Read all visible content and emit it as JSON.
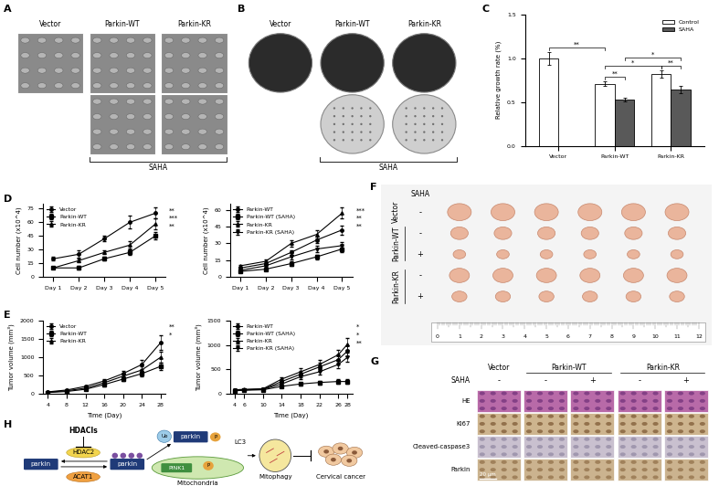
{
  "chart_data": [
    {
      "panel": "C",
      "type": "bar",
      "ylabel": "Relative growth rate (%)",
      "categories": [
        "Vector",
        "Parkin-WT",
        "Parkin-KR"
      ],
      "series": [
        {
          "name": "Control",
          "color": "#ffffff",
          "values": [
            1.0,
            0.71,
            0.82
          ],
          "errors": [
            0.07,
            0.03,
            0.04
          ]
        },
        {
          "name": "SAHA",
          "color": "#595959",
          "values": [
            null,
            0.53,
            0.64
          ],
          "errors": [
            null,
            0.02,
            0.04
          ]
        }
      ],
      "ylim": [
        0,
        1.5
      ],
      "yticks": [
        {
          "value": 0,
          "label": "0.0"
        },
        {
          "value": 0.5,
          "label": "0.5"
        },
        {
          "value": 1.0,
          "label": "1.0"
        },
        {
          "value": 1.5,
          "label": "1.5"
        }
      ],
      "legend": "upper right",
      "comparisons": [
        {
          "between": [
            [
              "Parkin-WT",
              "Control"
            ],
            [
              "Parkin-WT",
              "SAHA"
            ]
          ],
          "text": "**"
        },
        {
          "between": [
            [
              "Parkin-KR",
              "Control"
            ],
            [
              "Parkin-KR",
              "SAHA"
            ]
          ],
          "text": "**"
        },
        {
          "between": [
            [
              "Vector",
              "Control"
            ],
            [
              "Parkin-WT",
              "Control"
            ]
          ],
          "text": "**"
        },
        {
          "between": [
            [
              "Parkin-WT",
              "Control"
            ],
            [
              "Parkin-KR",
              "Control"
            ]
          ],
          "text": "*"
        },
        {
          "between": [
            [
              "Parkin-WT",
              "SAHA"
            ],
            [
              "Parkin-KR",
              "SAHA"
            ]
          ],
          "text": "*"
        }
      ]
    },
    {
      "panel": "D",
      "type": "line",
      "ylabel": "Cell number (x10^4)",
      "categories": [
        "Day 1",
        "Day 2",
        "Day 3",
        "Day 4",
        "Day 5"
      ],
      "series": [
        {
          "name": "Vector",
          "color": "#000000",
          "marker": "circle",
          "values": [
            20,
            25,
            42,
            60,
            70
          ],
          "errors": [
            2,
            4,
            3,
            7,
            6
          ]
        },
        {
          "name": "Parkin-WT",
          "color": "#000000",
          "marker": "square",
          "values": [
            10,
            10,
            20,
            27,
            45
          ],
          "errors": [
            1,
            2,
            2,
            3,
            4
          ]
        },
        {
          "name": "Parkin-KR",
          "color": "#000000",
          "marker": "triangle",
          "values": [
            10,
            18,
            27,
            35,
            58
          ],
          "errors": [
            1,
            2,
            2,
            4,
            6
          ]
        }
      ],
      "ylim": [
        0,
        80
      ],
      "yticks": [
        0,
        15,
        30,
        45,
        60,
        75
      ],
      "legend": "upper left",
      "significance": [
        "**",
        "***",
        "**"
      ]
    },
    {
      "type": "line",
      "ylabel": "Cell number (x10^4)",
      "categories": [
        "Day 1",
        "Day 2",
        "Day 3",
        "Day 4",
        "Day 5"
      ],
      "series": [
        {
          "name": "Parkin-WT",
          "color": "#000000",
          "marker": "circle",
          "values": [
            8,
            12,
            22,
            33,
            42
          ],
          "errors": [
            1,
            2,
            2,
            3,
            4
          ]
        },
        {
          "name": "Parkin-WT (SAHA)",
          "color": "#000000",
          "marker": "square",
          "values": [
            5,
            7,
            12,
            18,
            25
          ],
          "errors": [
            1,
            1,
            2,
            2,
            3
          ]
        },
        {
          "name": "Parkin-KR",
          "color": "#000000",
          "marker": "triangle",
          "values": [
            10,
            14,
            30,
            38,
            57
          ],
          "errors": [
            1,
            2,
            3,
            4,
            5
          ]
        },
        {
          "name": "Parkin-KR (SAHA)",
          "color": "#000000",
          "marker": "triangle_down",
          "values": [
            6,
            10,
            18,
            25,
            28
          ],
          "errors": [
            1,
            1,
            2,
            3,
            3
          ]
        }
      ],
      "ylim": [
        0,
        65
      ],
      "yticks": [
        0,
        15,
        30,
        45,
        60
      ],
      "legend": "upper left",
      "significance": [
        "***",
        "**",
        "**"
      ]
    },
    {
      "panel": "E",
      "type": "line",
      "xlabel": "Time (Day)",
      "ylabel": "Tumor volume (mm³)",
      "x": [
        4,
        8,
        12,
        16,
        20,
        24,
        28
      ],
      "series": [
        {
          "name": "Vector",
          "color": "#000000",
          "marker": "circle",
          "values": [
            50,
            100,
            200,
            350,
            550,
            800,
            1400
          ],
          "errors": [
            10,
            20,
            30,
            50,
            80,
            120,
            200
          ]
        },
        {
          "name": "Parkin-WT",
          "color": "#000000",
          "marker": "square",
          "values": [
            30,
            60,
            120,
            250,
            400,
            550,
            750
          ],
          "errors": [
            8,
            15,
            25,
            40,
            60,
            80,
            100
          ]
        },
        {
          "name": "Parkin-KR",
          "color": "#000000",
          "marker": "triangle",
          "values": [
            40,
            80,
            150,
            300,
            480,
            650,
            1000
          ],
          "errors": [
            8,
            15,
            25,
            45,
            70,
            100,
            150
          ]
        }
      ],
      "xlim": [
        3,
        29
      ],
      "xticks": [
        4,
        8,
        12,
        16,
        20,
        24,
        28
      ],
      "ylim": [
        0,
        2000
      ],
      "yticks": [
        0,
        500,
        1000,
        1500,
        2000
      ],
      "legend": "upper left",
      "significance": [
        "**",
        "*"
      ]
    },
    {
      "type": "line",
      "xlabel": "Time (Day)",
      "ylabel": "Tumor volume (mm³)",
      "x": [
        4,
        6,
        10,
        14,
        18,
        22,
        26,
        28
      ],
      "series": [
        {
          "name": "Parkin-WT",
          "color": "#000000",
          "marker": "circle",
          "values": [
            70,
            80,
            90,
            250,
            400,
            550,
            700,
            880
          ],
          "errors": [
            10,
            10,
            15,
            40,
            60,
            80,
            100,
            110
          ]
        },
        {
          "name": "Parkin-WT (SAHA)",
          "color": "#000000",
          "marker": "square",
          "values": [
            60,
            70,
            80,
            150,
            200,
            230,
            250,
            250
          ],
          "errors": [
            10,
            10,
            10,
            25,
            30,
            35,
            40,
            40
          ]
        },
        {
          "name": "Parkin-KR",
          "color": "#000000",
          "marker": "triangle",
          "values": [
            80,
            90,
            100,
            300,
            450,
            600,
            800,
            1020
          ],
          "errors": [
            10,
            10,
            15,
            45,
            70,
            90,
            110,
            120
          ]
        },
        {
          "name": "Parkin-KR (SAHA)",
          "color": "#000000",
          "marker": "triangle_down",
          "values": [
            70,
            80,
            90,
            200,
            350,
            450,
            600,
            750
          ],
          "errors": [
            10,
            10,
            15,
            30,
            50,
            60,
            80,
            90
          ]
        }
      ],
      "xlim": [
        3,
        29
      ],
      "xticks": [
        4,
        6,
        10,
        14,
        18,
        22,
        26,
        28
      ],
      "ylim": [
        0,
        1500
      ],
      "yticks": [
        0,
        500,
        1000,
        1500
      ],
      "legend": "upper left",
      "significance": [
        "*",
        "*",
        "**"
      ]
    }
  ],
  "A": {
    "panel": "A",
    "columns": [
      "Vector",
      "Parkin-WT",
      "Parkin-KR"
    ],
    "treatment": "SAHA"
  },
  "B": {
    "panel": "B",
    "columns": [
      "Vector",
      "Parkin-WT",
      "Parkin-KR"
    ],
    "treatment": "SAHA"
  },
  "F": {
    "panel": "F",
    "treatment": "SAHA",
    "rows": [
      {
        "group": "Vector",
        "saha": "-"
      },
      {
        "group": "Parkin-WT",
        "saha": "-"
      },
      {
        "group": "Parkin-WT",
        "saha": "+"
      },
      {
        "group": "Parkin-KR",
        "saha": "-"
      },
      {
        "group": "Parkin-KR",
        "saha": "+"
      }
    ],
    "ruler": [
      0,
      1,
      2,
      3,
      4,
      5,
      6,
      7,
      8,
      9,
      10,
      11,
      12
    ]
  },
  "G": {
    "panel": "G",
    "treatment": "SAHA",
    "groups": [
      {
        "name": "Vector",
        "saha": [
          "-"
        ]
      },
      {
        "name": "Parkin-WT",
        "saha": [
          "-",
          "+"
        ]
      },
      {
        "name": "Parkin-KR",
        "saha": [
          "-",
          "+"
        ]
      }
    ],
    "rows": [
      "HE",
      "Ki67",
      "Cleaved-caspase3",
      "Parkin"
    ],
    "scale": "20 μm"
  },
  "H": {
    "panel": "H",
    "inhibitor": "HDACIs",
    "deacetylase": "HDAC2",
    "acetyltransferase": "ACAT1",
    "protein": "parkin",
    "kinase": "PINK1",
    "ubiquitin": "Ub",
    "phosphate": "P",
    "autophagy_marker": "LC3",
    "organelle": "Mitochondria",
    "process": "Mitophagy",
    "outcome": "Cervical cancer"
  }
}
